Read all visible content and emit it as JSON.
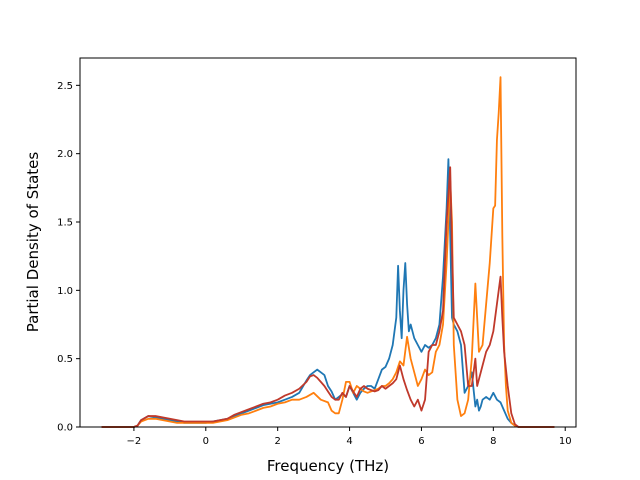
{
  "chart_data": {
    "type": "line",
    "title": "",
    "xlabel": "Frequency (THz)",
    "ylabel": "Partial Density of States",
    "xlim": [
      -3.5,
      10.3
    ],
    "ylim": [
      0.0,
      2.7
    ],
    "xticks": [
      -2,
      0,
      2,
      4,
      6,
      8,
      10
    ],
    "xtick_labels": [
      "−2",
      "0",
      "2",
      "4",
      "6",
      "8",
      "10"
    ],
    "yticks": [
      0.0,
      0.5,
      1.0,
      1.5,
      2.0,
      2.5
    ],
    "ytick_labels": [
      "0.0",
      "0.5",
      "1.0",
      "1.5",
      "2.0",
      "2.5"
    ],
    "grid": false,
    "legend": "none",
    "series": [
      {
        "color": "#1f77b4",
        "x": [
          -2.9,
          -2.5,
          -2.0,
          -1.9,
          -1.8,
          -1.6,
          -1.4,
          -1.2,
          -1.0,
          -0.8,
          -0.6,
          -0.4,
          -0.2,
          0.0,
          0.2,
          0.4,
          0.6,
          0.8,
          1.0,
          1.2,
          1.4,
          1.6,
          1.8,
          2.0,
          2.2,
          2.4,
          2.6,
          2.8,
          2.9,
          3.0,
          3.1,
          3.2,
          3.3,
          3.4,
          3.5,
          3.6,
          3.7,
          3.8,
          3.9,
          4.0,
          4.1,
          4.2,
          4.3,
          4.4,
          4.5,
          4.6,
          4.7,
          4.8,
          4.9,
          5.0,
          5.1,
          5.2,
          5.3,
          5.35,
          5.4,
          5.45,
          5.5,
          5.55,
          5.6,
          5.65,
          5.7,
          5.75,
          5.8,
          5.9,
          6.0,
          6.1,
          6.2,
          6.3,
          6.4,
          6.5,
          6.6,
          6.7,
          6.75,
          6.8,
          6.85,
          6.9,
          7.0,
          7.1,
          7.2,
          7.3,
          7.4,
          7.5,
          7.55,
          7.6,
          7.65,
          7.7,
          7.8,
          7.9,
          8.0,
          8.1,
          8.2,
          8.3,
          8.4,
          8.5,
          8.6,
          8.7,
          8.8,
          9.2,
          9.7
        ],
        "y": [
          0.0,
          0.0,
          0.0,
          0.01,
          0.05,
          0.08,
          0.07,
          0.06,
          0.05,
          0.04,
          0.03,
          0.03,
          0.03,
          0.03,
          0.04,
          0.05,
          0.06,
          0.08,
          0.1,
          0.12,
          0.14,
          0.16,
          0.17,
          0.18,
          0.2,
          0.22,
          0.25,
          0.34,
          0.38,
          0.4,
          0.42,
          0.4,
          0.38,
          0.3,
          0.26,
          0.2,
          0.22,
          0.24,
          0.22,
          0.3,
          0.25,
          0.2,
          0.25,
          0.28,
          0.3,
          0.3,
          0.28,
          0.35,
          0.42,
          0.44,
          0.5,
          0.6,
          0.8,
          1.18,
          0.85,
          0.65,
          1.0,
          1.2,
          0.9,
          0.7,
          0.75,
          0.7,
          0.65,
          0.6,
          0.55,
          0.6,
          0.58,
          0.6,
          0.65,
          0.75,
          1.1,
          1.6,
          1.96,
          1.4,
          0.8,
          0.75,
          0.7,
          0.6,
          0.25,
          0.3,
          0.4,
          0.15,
          0.2,
          0.12,
          0.15,
          0.2,
          0.22,
          0.2,
          0.25,
          0.2,
          0.18,
          0.12,
          0.06,
          0.03,
          0.01,
          0.0,
          0.0,
          0.0,
          0.0
        ]
      },
      {
        "color": "#ff7f0e",
        "x": [
          -2.9,
          -2.5,
          -2.0,
          -1.9,
          -1.8,
          -1.6,
          -1.4,
          -1.2,
          -1.0,
          -0.8,
          -0.6,
          -0.4,
          -0.2,
          0.0,
          0.2,
          0.4,
          0.6,
          0.8,
          1.0,
          1.2,
          1.4,
          1.6,
          1.8,
          2.0,
          2.2,
          2.4,
          2.6,
          2.8,
          3.0,
          3.2,
          3.4,
          3.5,
          3.6,
          3.7,
          3.8,
          3.9,
          4.0,
          4.1,
          4.2,
          4.3,
          4.4,
          4.5,
          4.6,
          4.7,
          4.8,
          4.9,
          5.0,
          5.1,
          5.2,
          5.3,
          5.4,
          5.5,
          5.6,
          5.7,
          5.8,
          5.9,
          6.0,
          6.1,
          6.2,
          6.3,
          6.4,
          6.5,
          6.6,
          6.7,
          6.8,
          6.85,
          6.9,
          7.0,
          7.1,
          7.2,
          7.3,
          7.4,
          7.5,
          7.55,
          7.6,
          7.7,
          7.8,
          7.9,
          8.0,
          8.05,
          8.1,
          8.15,
          8.2,
          8.25,
          8.3,
          8.35,
          8.4,
          8.5,
          8.6,
          8.7,
          8.8,
          9.2,
          9.7
        ],
        "y": [
          0.0,
          0.0,
          0.0,
          0.01,
          0.04,
          0.06,
          0.06,
          0.05,
          0.04,
          0.03,
          0.03,
          0.03,
          0.03,
          0.03,
          0.03,
          0.04,
          0.05,
          0.07,
          0.09,
          0.1,
          0.12,
          0.14,
          0.15,
          0.17,
          0.18,
          0.2,
          0.2,
          0.22,
          0.25,
          0.2,
          0.18,
          0.12,
          0.1,
          0.1,
          0.2,
          0.33,
          0.33,
          0.25,
          0.3,
          0.28,
          0.26,
          0.25,
          0.26,
          0.27,
          0.28,
          0.3,
          0.3,
          0.32,
          0.35,
          0.4,
          0.48,
          0.45,
          0.66,
          0.5,
          0.4,
          0.3,
          0.35,
          0.42,
          0.38,
          0.4,
          0.55,
          0.6,
          0.75,
          1.2,
          1.8,
          1.5,
          0.6,
          0.2,
          0.08,
          0.1,
          0.2,
          0.5,
          1.05,
          0.8,
          0.55,
          0.6,
          0.9,
          1.2,
          1.6,
          1.62,
          2.1,
          2.3,
          2.56,
          1.4,
          0.6,
          0.3,
          0.12,
          0.03,
          0.01,
          0.0,
          0.0,
          0.0,
          0.0
        ]
      },
      {
        "color": "#c0392b",
        "x": [
          -2.9,
          -2.5,
          -2.0,
          -1.9,
          -1.8,
          -1.6,
          -1.4,
          -1.2,
          -1.0,
          -0.8,
          -0.6,
          -0.4,
          -0.2,
          0.0,
          0.2,
          0.4,
          0.6,
          0.8,
          1.0,
          1.2,
          1.4,
          1.6,
          1.8,
          2.0,
          2.2,
          2.4,
          2.6,
          2.8,
          2.9,
          3.0,
          3.1,
          3.2,
          3.3,
          3.4,
          3.5,
          3.6,
          3.7,
          3.8,
          3.9,
          4.0,
          4.1,
          4.2,
          4.3,
          4.4,
          4.5,
          4.6,
          4.7,
          4.8,
          4.9,
          5.0,
          5.1,
          5.2,
          5.3,
          5.4,
          5.5,
          5.6,
          5.7,
          5.8,
          5.9,
          6.0,
          6.1,
          6.2,
          6.3,
          6.4,
          6.5,
          6.6,
          6.7,
          6.75,
          6.8,
          6.85,
          6.9,
          7.0,
          7.1,
          7.2,
          7.3,
          7.4,
          7.5,
          7.55,
          7.6,
          7.7,
          7.8,
          7.9,
          8.0,
          8.1,
          8.2,
          8.25,
          8.3,
          8.4,
          8.5,
          8.6,
          8.7,
          8.8,
          9.2,
          9.7
        ],
        "y": [
          0.0,
          0.0,
          0.0,
          0.01,
          0.05,
          0.08,
          0.08,
          0.07,
          0.06,
          0.05,
          0.04,
          0.04,
          0.04,
          0.04,
          0.04,
          0.05,
          0.06,
          0.09,
          0.11,
          0.13,
          0.15,
          0.17,
          0.18,
          0.2,
          0.23,
          0.25,
          0.28,
          0.33,
          0.37,
          0.38,
          0.36,
          0.33,
          0.3,
          0.26,
          0.22,
          0.2,
          0.2,
          0.25,
          0.22,
          0.3,
          0.26,
          0.22,
          0.28,
          0.3,
          0.28,
          0.27,
          0.26,
          0.27,
          0.3,
          0.28,
          0.3,
          0.32,
          0.35,
          0.45,
          0.35,
          0.27,
          0.2,
          0.15,
          0.2,
          0.12,
          0.2,
          0.55,
          0.6,
          0.6,
          0.7,
          0.85,
          1.5,
          1.7,
          1.9,
          1.3,
          0.8,
          0.75,
          0.7,
          0.6,
          0.3,
          0.3,
          0.5,
          0.3,
          0.35,
          0.45,
          0.55,
          0.6,
          0.7,
          0.9,
          1.1,
          0.8,
          0.55,
          0.3,
          0.1,
          0.02,
          0.0,
          0.0,
          0.0,
          0.0
        ]
      }
    ]
  }
}
